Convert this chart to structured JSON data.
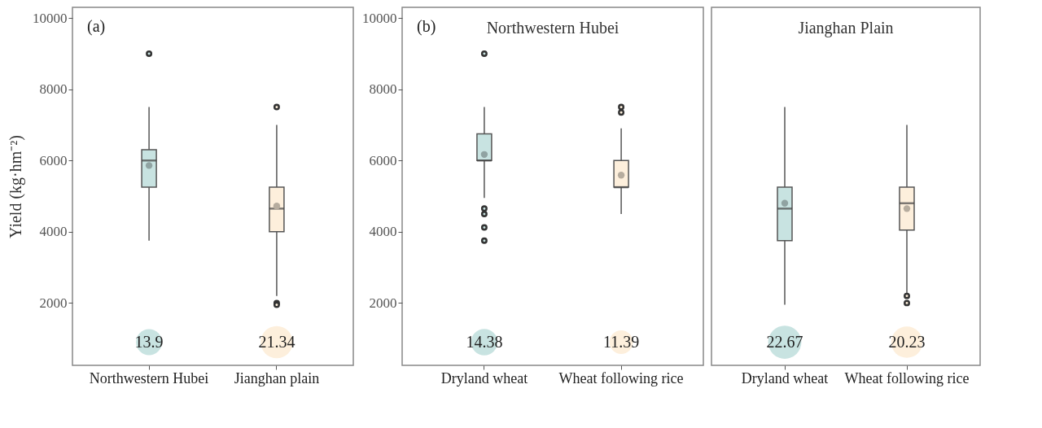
{
  "chart_data": [
    {
      "type": "box",
      "ylabel": "Yield (kg·hm⁻²)",
      "categories": [
        "Northwestern Hubei",
        "Jianghan plain"
      ],
      "ylim": [
        250,
        10300
      ],
      "yticks": [
        2000,
        4000,
        6000,
        8000,
        10000
      ],
      "grid": false,
      "series": [
        {
          "type": "box",
          "colors": [
            "#c8e3e1",
            "#fdefdc"
          ],
          "boxes": [
            {
              "low": 3750,
              "q1": 5250,
              "median": 6000,
              "q3": 6300,
              "high": 7500,
              "mean": 5860,
              "outliers": [
                9000
              ]
            },
            {
              "low": 2200,
              "q1": 4000,
              "median": 4650,
              "q3": 5250,
              "high": 7000,
              "mean": 4720,
              "outliers": [
                7500,
                2000,
                1950
              ]
            }
          ]
        },
        {
          "type": "bubble",
          "colors": [
            "#c8e3e1",
            "#fdefdc"
          ],
          "values": [
            900,
            900
          ],
          "sizes": [
            13.9,
            21.34
          ],
          "value_labels": [
            "13.9",
            "21.34"
          ]
        }
      ],
      "annotations": [
        "(a)"
      ]
    },
    {
      "type": "box",
      "title": "Northwestern Hubei",
      "categories": [
        "Dryland wheat",
        "Wheat following rice"
      ],
      "ylim": [
        250,
        10300
      ],
      "yticks": [
        2000,
        4000,
        6000,
        8000,
        10000
      ],
      "grid": false,
      "series": [
        {
          "type": "box",
          "colors": [
            "#c8e3e1",
            "#fdefdc"
          ],
          "boxes": [
            {
              "low": 4950,
              "q1": 6000,
              "median": 6000,
              "q3": 6750,
              "high": 7500,
              "mean": 6170,
              "outliers": [
                9000,
                4650,
                4500,
                4120,
                3750
              ]
            },
            {
              "low": 4500,
              "q1": 5250,
              "median": 5250,
              "q3": 6000,
              "high": 6900,
              "mean": 5590,
              "outliers": [
                7500,
                7350
              ]
            }
          ]
        },
        {
          "type": "bubble",
          "colors": [
            "#c8e3e1",
            "#fdefdc"
          ],
          "values": [
            900,
            900
          ],
          "sizes": [
            14.38,
            11.39
          ],
          "value_labels": [
            "14.38",
            "11.39"
          ]
        }
      ],
      "annotations": [
        "(b)"
      ]
    },
    {
      "type": "box",
      "title": "Jianghan Plain",
      "categories": [
        "Dryland wheat",
        "Wheat following rice"
      ],
      "ylim": [
        250,
        10300
      ],
      "yticks": [
        2000,
        4000,
        6000,
        8000,
        10000
      ],
      "grid": false,
      "tick_labels": "x",
      "series": [
        {
          "type": "box",
          "colors": [
            "#c8e3e1",
            "#fdefdc"
          ],
          "boxes": [
            {
              "low": 1950,
              "q1": 3750,
              "median": 4650,
              "q3": 5250,
              "high": 7500,
              "mean": 4800
            },
            {
              "low": 2250,
              "q1": 4050,
              "median": 4800,
              "q3": 5250,
              "high": 7000,
              "mean": 4650,
              "outliers": [
                2200,
                2000
              ]
            }
          ]
        },
        {
          "type": "bubble",
          "colors": [
            "#c8e3e1",
            "#fdefdc"
          ],
          "values": [
            900,
            900
          ],
          "sizes": [
            22.67,
            20.23
          ],
          "value_labels": [
            "22.67",
            "20.23"
          ]
        }
      ]
    }
  ]
}
